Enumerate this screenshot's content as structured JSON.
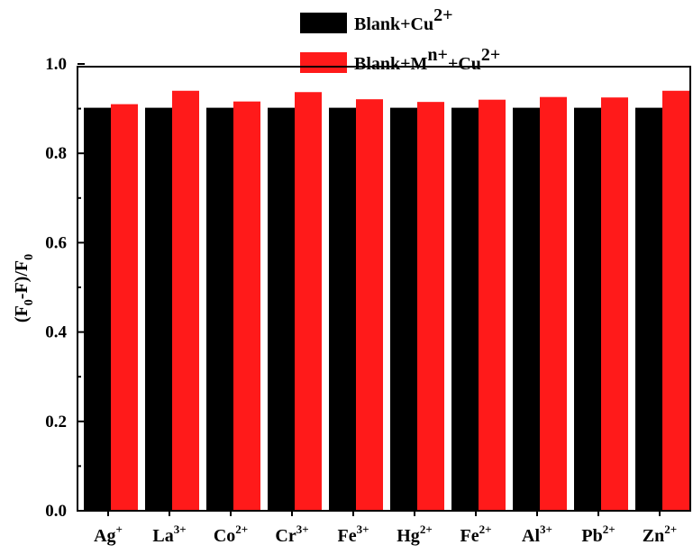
{
  "chart_data": {
    "type": "bar",
    "title": "",
    "xlabel": "",
    "ylabel": {
      "base": "(F",
      "sub1": "0",
      "mid": "-F)/F",
      "sub2": "0"
    },
    "ylim": [
      0,
      1.0
    ],
    "yticks": [
      "0.0",
      "0.2",
      "0.4",
      "0.6",
      "0.8",
      "1.0"
    ],
    "grid": false,
    "legend_position": "top",
    "categories": [
      {
        "base": "Ag",
        "sup": "+"
      },
      {
        "base": "La",
        "sup": "3+"
      },
      {
        "base": "Co",
        "sup": "2+"
      },
      {
        "base": "Cr",
        "sup": "3+"
      },
      {
        "base": "Fe",
        "sup": "3+"
      },
      {
        "base": "Hg",
        "sup": "2+"
      },
      {
        "base": "Fe",
        "sup": "2+"
      },
      {
        "base": "Al",
        "sup": "3+"
      },
      {
        "base": "Pb",
        "sup": "2+"
      },
      {
        "base": "Zn",
        "sup": "2+"
      }
    ],
    "series": [
      {
        "name": "Blank+Cu2+",
        "legend_parts": [
          {
            "t": "Blank+Cu"
          },
          {
            "t": "2+",
            "sup": true
          }
        ],
        "color": "#000000",
        "values": [
          0.902,
          0.902,
          0.902,
          0.902,
          0.902,
          0.902,
          0.902,
          0.902,
          0.902,
          0.902
        ]
      },
      {
        "name": "Blank+Mn++Cu2+",
        "legend_parts": [
          {
            "t": "Blank+M"
          },
          {
            "t": "n+",
            "sup": true
          },
          {
            "t": "+Cu"
          },
          {
            "t": "2+",
            "sup": true
          }
        ],
        "color": "#ff1a1a",
        "values": [
          0.91,
          0.94,
          0.916,
          0.937,
          0.921,
          0.915,
          0.92,
          0.926,
          0.925,
          0.94
        ]
      }
    ]
  }
}
